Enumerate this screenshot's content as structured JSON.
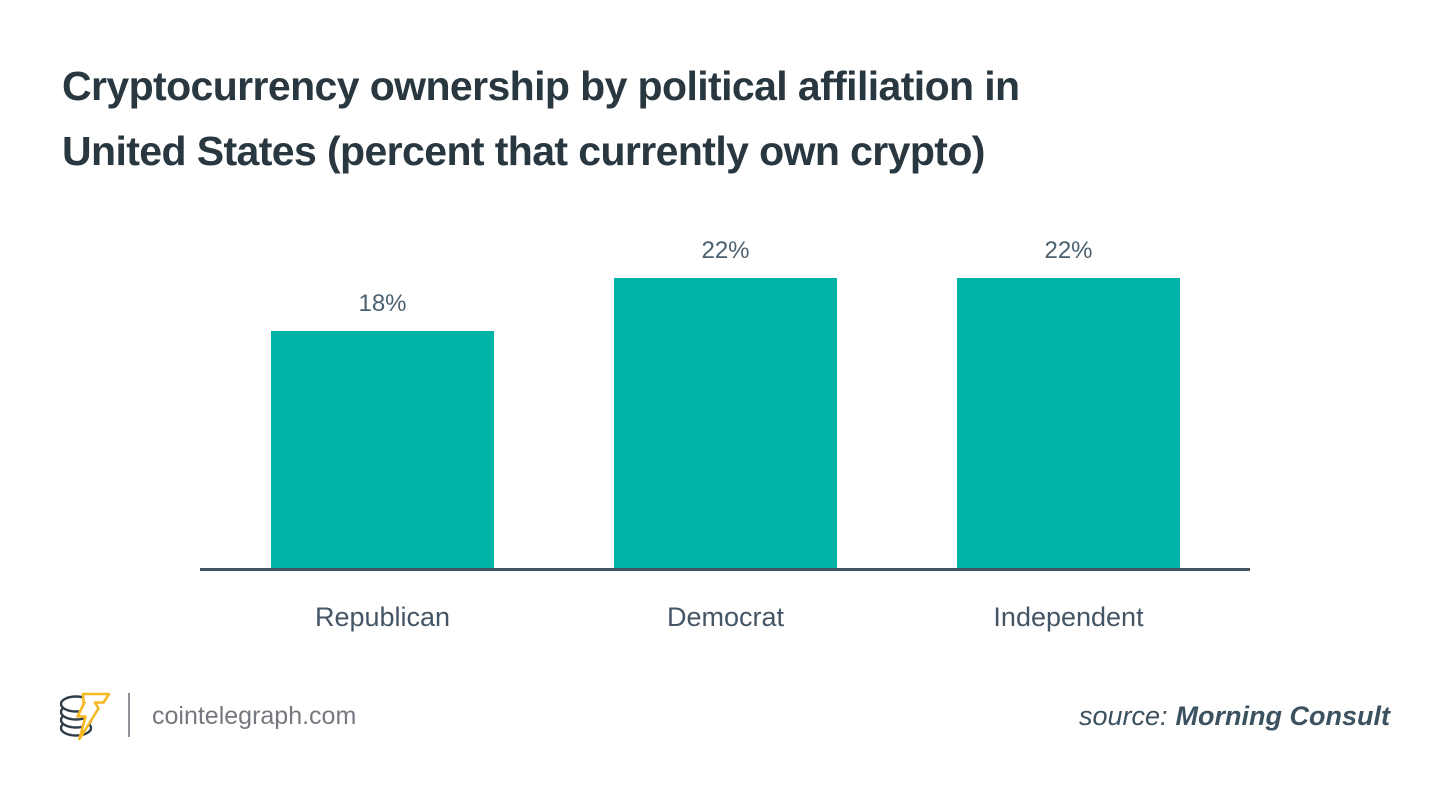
{
  "title": {
    "lines": [
      "Cryptocurrency ownership by political affiliation in",
      "United States (percent that currently own crypto)"
    ]
  },
  "chart_data": {
    "type": "bar",
    "title": "Cryptocurrency ownership by political affiliation in United States (percent that currently own crypto)",
    "categories": [
      "Republican",
      "Democrat",
      "Independent"
    ],
    "values": [
      18,
      22,
      22
    ],
    "value_labels": [
      "18%",
      "22%",
      "22%"
    ],
    "xlabel": "",
    "ylabel": "",
    "ylim": [
      0,
      24
    ],
    "grid": false,
    "legend": false,
    "bar_color": "#00b3a9",
    "axis_color": "#42525e",
    "value_label_color": "#4c6170",
    "category_label_color": "#445565"
  },
  "footer": {
    "brand": "cointelegraph.com",
    "source_prefix": "source:",
    "source_name": "Morning Consult",
    "logo_coin_color": "#2e3d47",
    "logo_bolt_color": "#f7b923"
  },
  "colors": {
    "title": "#293740",
    "background": "#ffffff"
  }
}
